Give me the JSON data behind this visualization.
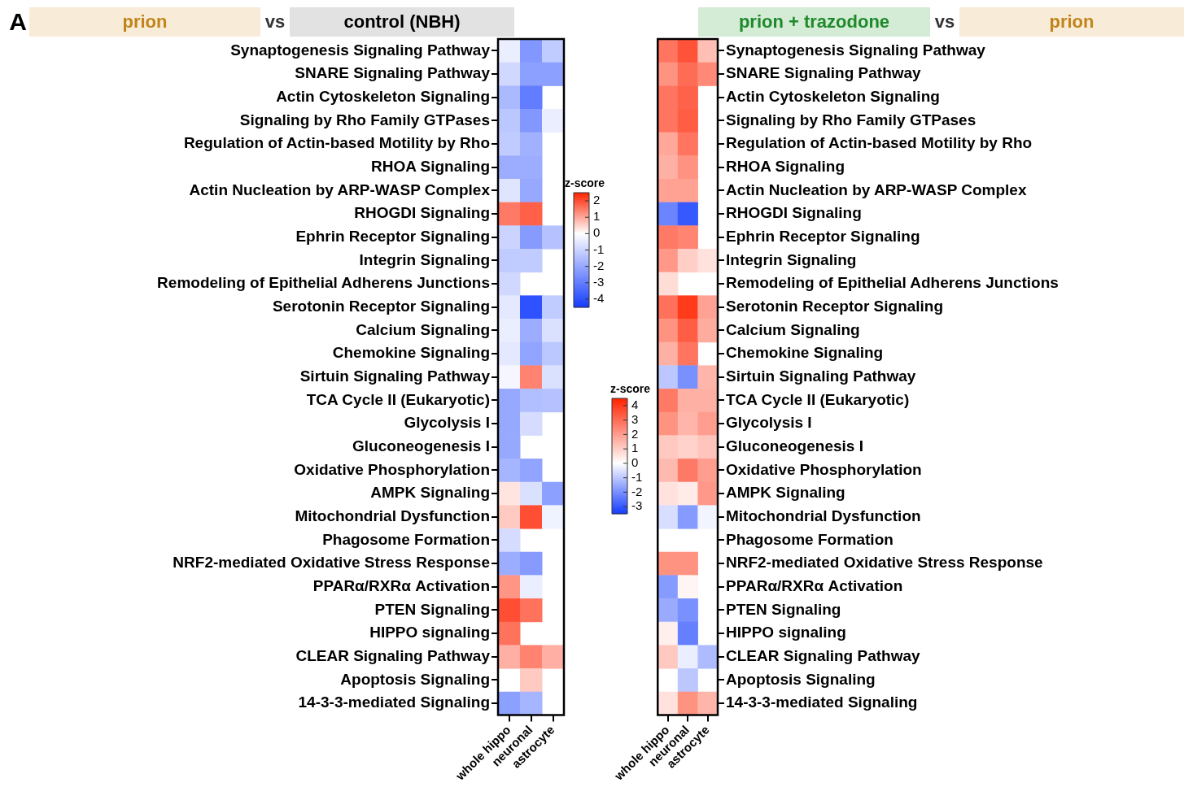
{
  "chart_data": [
    {
      "type": "heatmap",
      "annotations": [
        "A",
        "prion",
        "vs",
        "control (NBH)"
      ],
      "categories": [
        "whole hippo",
        "neuronal",
        "astrocyte"
      ],
      "y_categories": [
        "Synaptogenesis Signaling Pathway",
        "SNARE Signaling Pathway",
        "Actin Cytoskeleton Signaling",
        "Signaling by Rho Family GTPases",
        "Regulation of Actin-based Motility by Rho",
        "RHOA Signaling",
        "Actin Nucleation by ARP-WASP Complex",
        "RHOGDI Signaling",
        "Ephrin Receptor Signaling",
        "Integrin Signaling",
        "Remodeling of Epithelial Adherens Junctions",
        "Serotonin Receptor Signaling",
        "Calcium Signaling",
        "Chemokine Signaling",
        "Sirtuin Signaling Pathway",
        "TCA Cycle II (Eukaryotic)",
        "Glycolysis I",
        "Gluconeogenesis I",
        "Oxidative Phosphorylation",
        "AMPK Signaling",
        "Mitochondrial Dysfunction",
        "Phagosome Formation",
        "NRF2-mediated Oxidative Stress Response",
        "PPARα/RXRα Activation",
        "PTEN Signaling",
        "HIPPO signaling",
        "CLEAR Signaling Pathway",
        "Apoptosis Signaling",
        "14-3-3-mediated Signaling"
      ],
      "cells": [
        [
          -0.4,
          -2.4,
          -1.2
        ],
        [
          -0.9,
          -2.2,
          -2.2
        ],
        [
          -1.6,
          -3.0,
          null
        ],
        [
          -1.3,
          -2.4,
          -0.4
        ],
        [
          -1.2,
          -1.8,
          null
        ],
        [
          -1.9,
          -1.9,
          null
        ],
        [
          -0.6,
          -2.0,
          null
        ],
        [
          1.5,
          1.8,
          null
        ],
        [
          -1.0,
          -2.3,
          -1.4
        ],
        [
          -1.2,
          -1.2,
          null
        ],
        [
          -0.9,
          null,
          null
        ],
        [
          -0.5,
          -4.0,
          -1.2
        ],
        [
          -0.4,
          -1.9,
          -0.7
        ],
        [
          -0.5,
          -2.1,
          -1.3
        ],
        [
          -0.2,
          1.4,
          -0.7
        ],
        [
          -2.0,
          -1.5,
          -1.4
        ],
        [
          -2.0,
          -0.8,
          null
        ],
        [
          -2.0,
          null,
          null
        ],
        [
          -1.7,
          -2.1,
          null
        ],
        [
          0.3,
          -0.7,
          -2.2
        ],
        [
          0.6,
          2.0,
          -0.3
        ],
        [
          -0.8,
          null,
          null
        ],
        [
          -1.9,
          -2.3,
          null
        ],
        [
          1.2,
          -0.4,
          null
        ],
        [
          2.0,
          1.6,
          null
        ],
        [
          1.6,
          null,
          null
        ],
        [
          0.9,
          1.4,
          0.9
        ],
        [
          null,
          0.6,
          null
        ],
        [
          -2.2,
          -1.7,
          null
        ]
      ],
      "clim": [
        -4.5,
        2.5
      ],
      "cticks": [
        2,
        1,
        0,
        -1,
        -2,
        -3,
        -4
      ],
      "clabel": "z-score",
      "grid": false
    },
    {
      "type": "heatmap",
      "annotations": [
        "prion + trazodone",
        "vs",
        "prion"
      ],
      "categories": [
        "whole hippo",
        "neuronal",
        "astrocyte"
      ],
      "y_categories": [
        "Synaptogenesis Signaling Pathway",
        "SNARE Signaling Pathway",
        "Actin Cytoskeleton Signaling",
        "Signaling by Rho Family GTPases",
        "Regulation of Actin-based Motility by Rho",
        "RHOA Signaling",
        "Actin Nucleation by ARP-WASP Complex",
        "RHOGDI Signaling",
        "Ephrin Receptor Signaling",
        "Integrin Signaling",
        "Remodeling of Epithelial Adherens Junctions",
        "Serotonin Receptor Signaling",
        "Calcium Signaling",
        "Chemokine Signaling",
        "Sirtuin Signaling Pathway",
        "TCA Cycle II (Eukaryotic)",
        "Glycolysis I",
        "Gluconeogenesis I",
        "Oxidative Phosphorylation",
        "AMPK Signaling",
        "Mitochondrial Dysfunction",
        "Phagosome Formation",
        "NRF2-mediated Oxidative Stress Response",
        "PPARα/RXRα Activation",
        "PTEN Signaling",
        "HIPPO signaling",
        "CLEAR Signaling Pathway",
        "Apoptosis Signaling",
        "14-3-3-mediated Signaling"
      ],
      "cells": [
        [
          2.8,
          3.5,
          1.3
        ],
        [
          2.2,
          3.0,
          2.4
        ],
        [
          2.8,
          3.2,
          null
        ],
        [
          2.8,
          3.3,
          null
        ],
        [
          1.8,
          2.8,
          null
        ],
        [
          1.6,
          2.2,
          null
        ],
        [
          1.9,
          1.9,
          null
        ],
        [
          -2.2,
          -3.0,
          null
        ],
        [
          2.7,
          2.5,
          null
        ],
        [
          2.1,
          1.0,
          0.6
        ],
        [
          0.7,
          null,
          null
        ],
        [
          2.9,
          4.0,
          1.9
        ],
        [
          2.2,
          3.3,
          1.7
        ],
        [
          1.6,
          2.8,
          null
        ],
        [
          -1.0,
          -2.0,
          1.5
        ],
        [
          2.7,
          1.6,
          1.6
        ],
        [
          2.2,
          1.5,
          2.0
        ],
        [
          1.1,
          0.9,
          1.2
        ],
        [
          1.4,
          2.7,
          2.0
        ],
        [
          0.6,
          0.4,
          2.1
        ],
        [
          -0.6,
          -1.8,
          -0.2
        ],
        [
          null,
          null,
          null
        ],
        [
          2.2,
          2.2,
          null
        ],
        [
          -1.8,
          0.2,
          null
        ],
        [
          -1.5,
          -2.0,
          null
        ],
        [
          0.3,
          -2.3,
          null
        ],
        [
          1.1,
          -0.3,
          -1.2
        ],
        [
          null,
          -1.0,
          null
        ],
        [
          0.6,
          2.2,
          1.5
        ]
      ],
      "clim": [
        -3.5,
        4.5
      ],
      "cticks": [
        4,
        3,
        2,
        1,
        0,
        -1,
        -2,
        -3
      ],
      "clabel": "z-score",
      "grid": false
    }
  ]
}
